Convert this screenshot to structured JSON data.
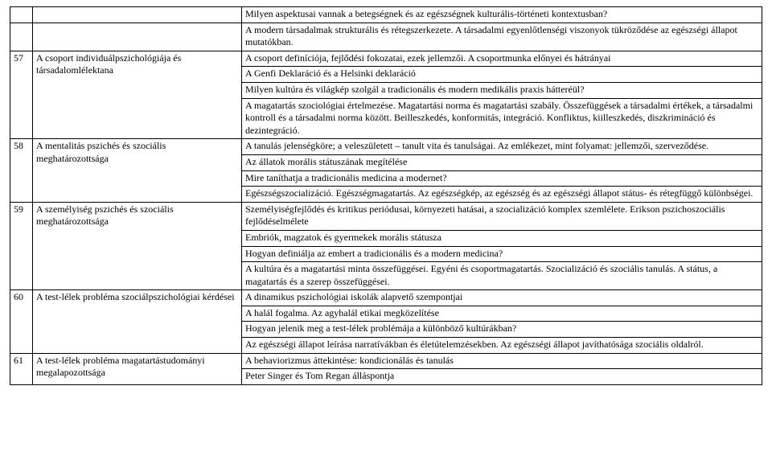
{
  "rows": [
    {
      "n": "",
      "topic": "",
      "desc": "Milyen aspektusai vannak a betegségnek és az egészségnek kulturális-történeti kontextusban?"
    },
    {
      "n": "",
      "topic": "",
      "desc": "A modern társadalmak strukturális és rétegszerkezete. A társadalmi egyenlőtlenségi viszonyok tükröződése az egészségi állapot mutatókban."
    },
    {
      "n": "57",
      "topic": "A csoport individuálpszichológiája és társadalomlélektana",
      "desc": "A csoport definíciója, fejlődési fokozatai, ezek jellemzői. A csoportmunka előnyei és hátrányai"
    },
    {
      "desc": "A Genfi Deklaráció és a Helsinki deklaráció"
    },
    {
      "desc": "Milyen kultúra és világkép szolgál a tradicionális és modern medikális praxis hátteréül?"
    },
    {
      "desc": "A magatartás szociológiai értelmezése. Magatartási norma és magatartási szabály. Összefüggések a társadalmi értékek, a társadalmi kontroll és a társadalmi norma között. Beilleszkedés, konformitás, integráció. Konfliktus, kiilleszkedés, diszkrimináció és dezintegráció."
    },
    {
      "n": "58",
      "topic": "A mentalitás pszichés és szociális meghatározottsága",
      "desc": "A tanulás jelenségköre; a veleszületett – tanult vita és tanulságai. Az emlékezet, mint folyamat: jellemzői, szerveződése."
    },
    {
      "desc": "Az állatok morális státuszának megítélése"
    },
    {
      "desc": "Mire taníthatja a tradicionális medicina a modernet?"
    },
    {
      "desc": "Egészségszocializáció. Egészségmagatartás. Az egészségkép, az egészség és az egészségi állapot státus- és rétegfüggő különbségei."
    },
    {
      "n": "59",
      "topic": "A személyiség pszichés és szociális meghatározottsága",
      "desc": "Személyiségfejlődés és kritikus periódusai, környezeti hatásai, a szocializáció komplex szemlélete. Erikson pszichoszociális fejlődéselmélete"
    },
    {
      "desc": "Embriók, magzatok és gyermekek morális státusza"
    },
    {
      "desc": "Hogyan definiálja az embert a tradicionális és a modern medicina?"
    },
    {
      "desc": "A kultúra és a magatartási minta összefüggései. Egyéni és csoportmagatartás. Szocializáció és szociális tanulás. A státus, a magatartás és a szerep összefüggései."
    },
    {
      "n": "60",
      "topic": "A test-lélek probléma szociálpszichológiai kérdései",
      "desc": "A dinamikus pszichológiai iskolák alapvető szempontjai"
    },
    {
      "desc": "A halál fogalma. Az agyhalál etikai megközelítése"
    },
    {
      "desc": "Hogyan jelenik meg a test-lélek problémája a különböző kultúrákban?"
    },
    {
      "desc": "Az egészségi állapot leírása narratívákban és életútelemzésekben. Az egészségi állapot javíthatósága szociális oldalról."
    },
    {
      "n": "61",
      "topic": "A test-lélek probléma magatartástudományi megalapozottsága",
      "desc": "A behaviorizmus áttekintése: kondicionálás és tanulás"
    },
    {
      "desc": "Peter Singer és Tom Regan álláspontja"
    }
  ],
  "groups": [
    {
      "start": 0,
      "span": 1
    },
    {
      "start": 1,
      "span": 1
    },
    {
      "start": 2,
      "span": 4
    },
    {
      "start": 6,
      "span": 4
    },
    {
      "start": 10,
      "span": 4
    },
    {
      "start": 14,
      "span": 4
    },
    {
      "start": 18,
      "span": 2
    }
  ]
}
